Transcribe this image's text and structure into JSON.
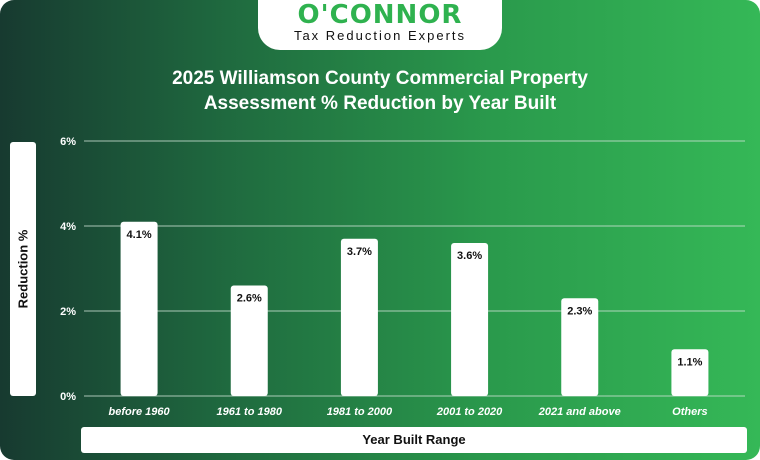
{
  "brand": {
    "name": "O'CONNOR",
    "tagline": "Tax Reduction Experts",
    "accent_color": "#2fb24f"
  },
  "chart_data": {
    "type": "bar",
    "title_line1": "2025 Williamson County Commercial Property",
    "title_line2": "Assessment % Reduction by Year Built",
    "xlabel": "Year Built Range",
    "ylabel": "Reduction %",
    "categories": [
      "before 1960",
      "1961 to 1980",
      "1981 to 2000",
      "2001 to 2020",
      "2021 and above",
      "Others"
    ],
    "values": [
      4.1,
      2.6,
      3.7,
      3.6,
      2.3,
      1.1
    ],
    "value_labels": [
      "4.1%",
      "2.6%",
      "3.7%",
      "3.6%",
      "2.3%",
      "1.1%"
    ],
    "yticks": [
      0,
      2,
      4,
      6
    ],
    "ytick_labels": [
      "0%",
      "2%",
      "4%",
      "6%"
    ],
    "ylim": [
      0,
      6
    ],
    "grid": true,
    "bar_color": "#ffffff",
    "grid_color": "#cfe3d6"
  }
}
